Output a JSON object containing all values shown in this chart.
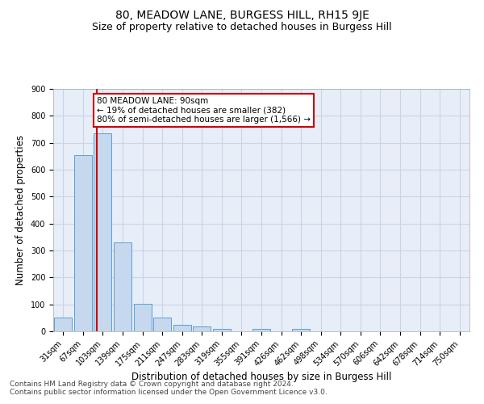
{
  "title": "80, MEADOW LANE, BURGESS HILL, RH15 9JE",
  "subtitle": "Size of property relative to detached houses in Burgess Hill",
  "xlabel": "Distribution of detached houses by size in Burgess Hill",
  "ylabel": "Number of detached properties",
  "bin_labels": [
    "31sqm",
    "67sqm",
    "103sqm",
    "139sqm",
    "175sqm",
    "211sqm",
    "247sqm",
    "283sqm",
    "319sqm",
    "355sqm",
    "391sqm",
    "426sqm",
    "462sqm",
    "498sqm",
    "534sqm",
    "570sqm",
    "606sqm",
    "642sqm",
    "678sqm",
    "714sqm",
    "750sqm"
  ],
  "bar_values": [
    50,
    655,
    735,
    330,
    103,
    50,
    25,
    17,
    10,
    0,
    8,
    0,
    8,
    0,
    0,
    0,
    0,
    0,
    0,
    0,
    0
  ],
  "bar_color": "#c5d8ed",
  "bar_edge_color": "#5a9fd4",
  "annotation_text": "80 MEADOW LANE: 90sqm\n← 19% of detached houses are smaller (382)\n80% of semi-detached houses are larger (1,566) →",
  "annotation_box_color": "#ffffff",
  "annotation_box_edge_color": "#cc0000",
  "vline_color": "#cc0000",
  "ylim": [
    0,
    900
  ],
  "yticks": [
    0,
    100,
    200,
    300,
    400,
    500,
    600,
    700,
    800,
    900
  ],
  "grid_color": "#c8d4e8",
  "bg_color": "#e8eef8",
  "footnote": "Contains HM Land Registry data © Crown copyright and database right 2024.\nContains public sector information licensed under the Open Government Licence v3.0.",
  "title_fontsize": 10,
  "subtitle_fontsize": 9,
  "xlabel_fontsize": 8.5,
  "ylabel_fontsize": 8.5,
  "tick_fontsize": 7,
  "footnote_fontsize": 6.5
}
